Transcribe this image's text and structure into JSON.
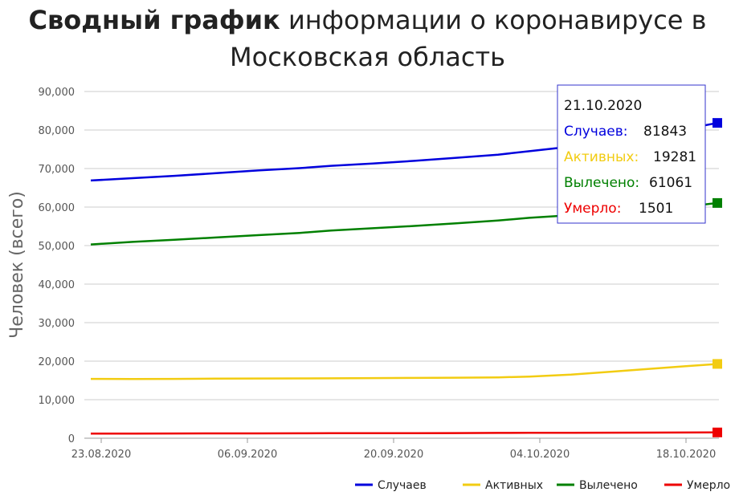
{
  "title": {
    "bold": "Сводный график",
    "rest": " информации о коронавирусе в",
    "line2": "Московская область"
  },
  "chart_data": {
    "type": "line",
    "ylabel": "Человек (всего)",
    "ylim": [
      0,
      90000
    ],
    "y_ticks": [
      "0",
      "10,000",
      "20,000",
      "30,000",
      "40,000",
      "50,000",
      "60,000",
      "70,000",
      "80,000",
      "90,000"
    ],
    "y_tick_values": [
      0,
      10000,
      20000,
      30000,
      40000,
      50000,
      60000,
      70000,
      80000,
      90000
    ],
    "x_ticks": [
      "23.08.2020",
      "06.09.2020",
      "20.09.2020",
      "04.10.2020",
      "18.10.2020"
    ],
    "x_dates": [
      "22.08.2020",
      "26.08.2020",
      "30.08.2020",
      "03.09.2020",
      "07.09.2020",
      "11.09.2020",
      "14.09.2020",
      "18.09.2020",
      "22.09.2020",
      "26.09.2020",
      "30.09.2020",
      "03.10.2020",
      "07.10.2020",
      "11.10.2020",
      "15.10.2020",
      "18.10.2020",
      "21.10.2020"
    ],
    "series": [
      {
        "name": "Случаев",
        "color": "#0000dd",
        "values": [
          66900,
          67500,
          68100,
          68800,
          69500,
          70100,
          70700,
          71300,
          72000,
          72800,
          73600,
          74500,
          75700,
          77100,
          78800,
          80300,
          81843
        ]
      },
      {
        "name": "Активных",
        "color": "#f2cc12",
        "values": [
          15400,
          15350,
          15400,
          15450,
          15500,
          15520,
          15550,
          15600,
          15650,
          15700,
          15800,
          16000,
          16500,
          17300,
          18100,
          18700,
          19281
        ]
      },
      {
        "name": "Вылечено",
        "color": "#008000",
        "values": [
          50300,
          50950,
          51500,
          52100,
          52700,
          53300,
          53900,
          54500,
          55100,
          55800,
          56500,
          57200,
          57900,
          58500,
          59300,
          60100,
          61061
        ]
      },
      {
        "name": "Умерло",
        "color": "#ee0000",
        "values": [
          1200,
          1210,
          1225,
          1240,
          1255,
          1270,
          1285,
          1300,
          1320,
          1340,
          1365,
          1390,
          1410,
          1430,
          1455,
          1480,
          1501
        ]
      }
    ],
    "legend_position": "bottom-right",
    "grid": true,
    "tooltip": {
      "date": "21.10.2020",
      "rows": [
        {
          "label": "Случаев:",
          "value": "81843",
          "color": "#0000dd"
        },
        {
          "label": "Активных:",
          "value": "19281",
          "color": "#f2cc12"
        },
        {
          "label": "Вылечено:",
          "value": "61061",
          "color": "#008000"
        },
        {
          "label": "Умерло:",
          "value": "1501",
          "color": "#ee0000"
        }
      ]
    }
  }
}
